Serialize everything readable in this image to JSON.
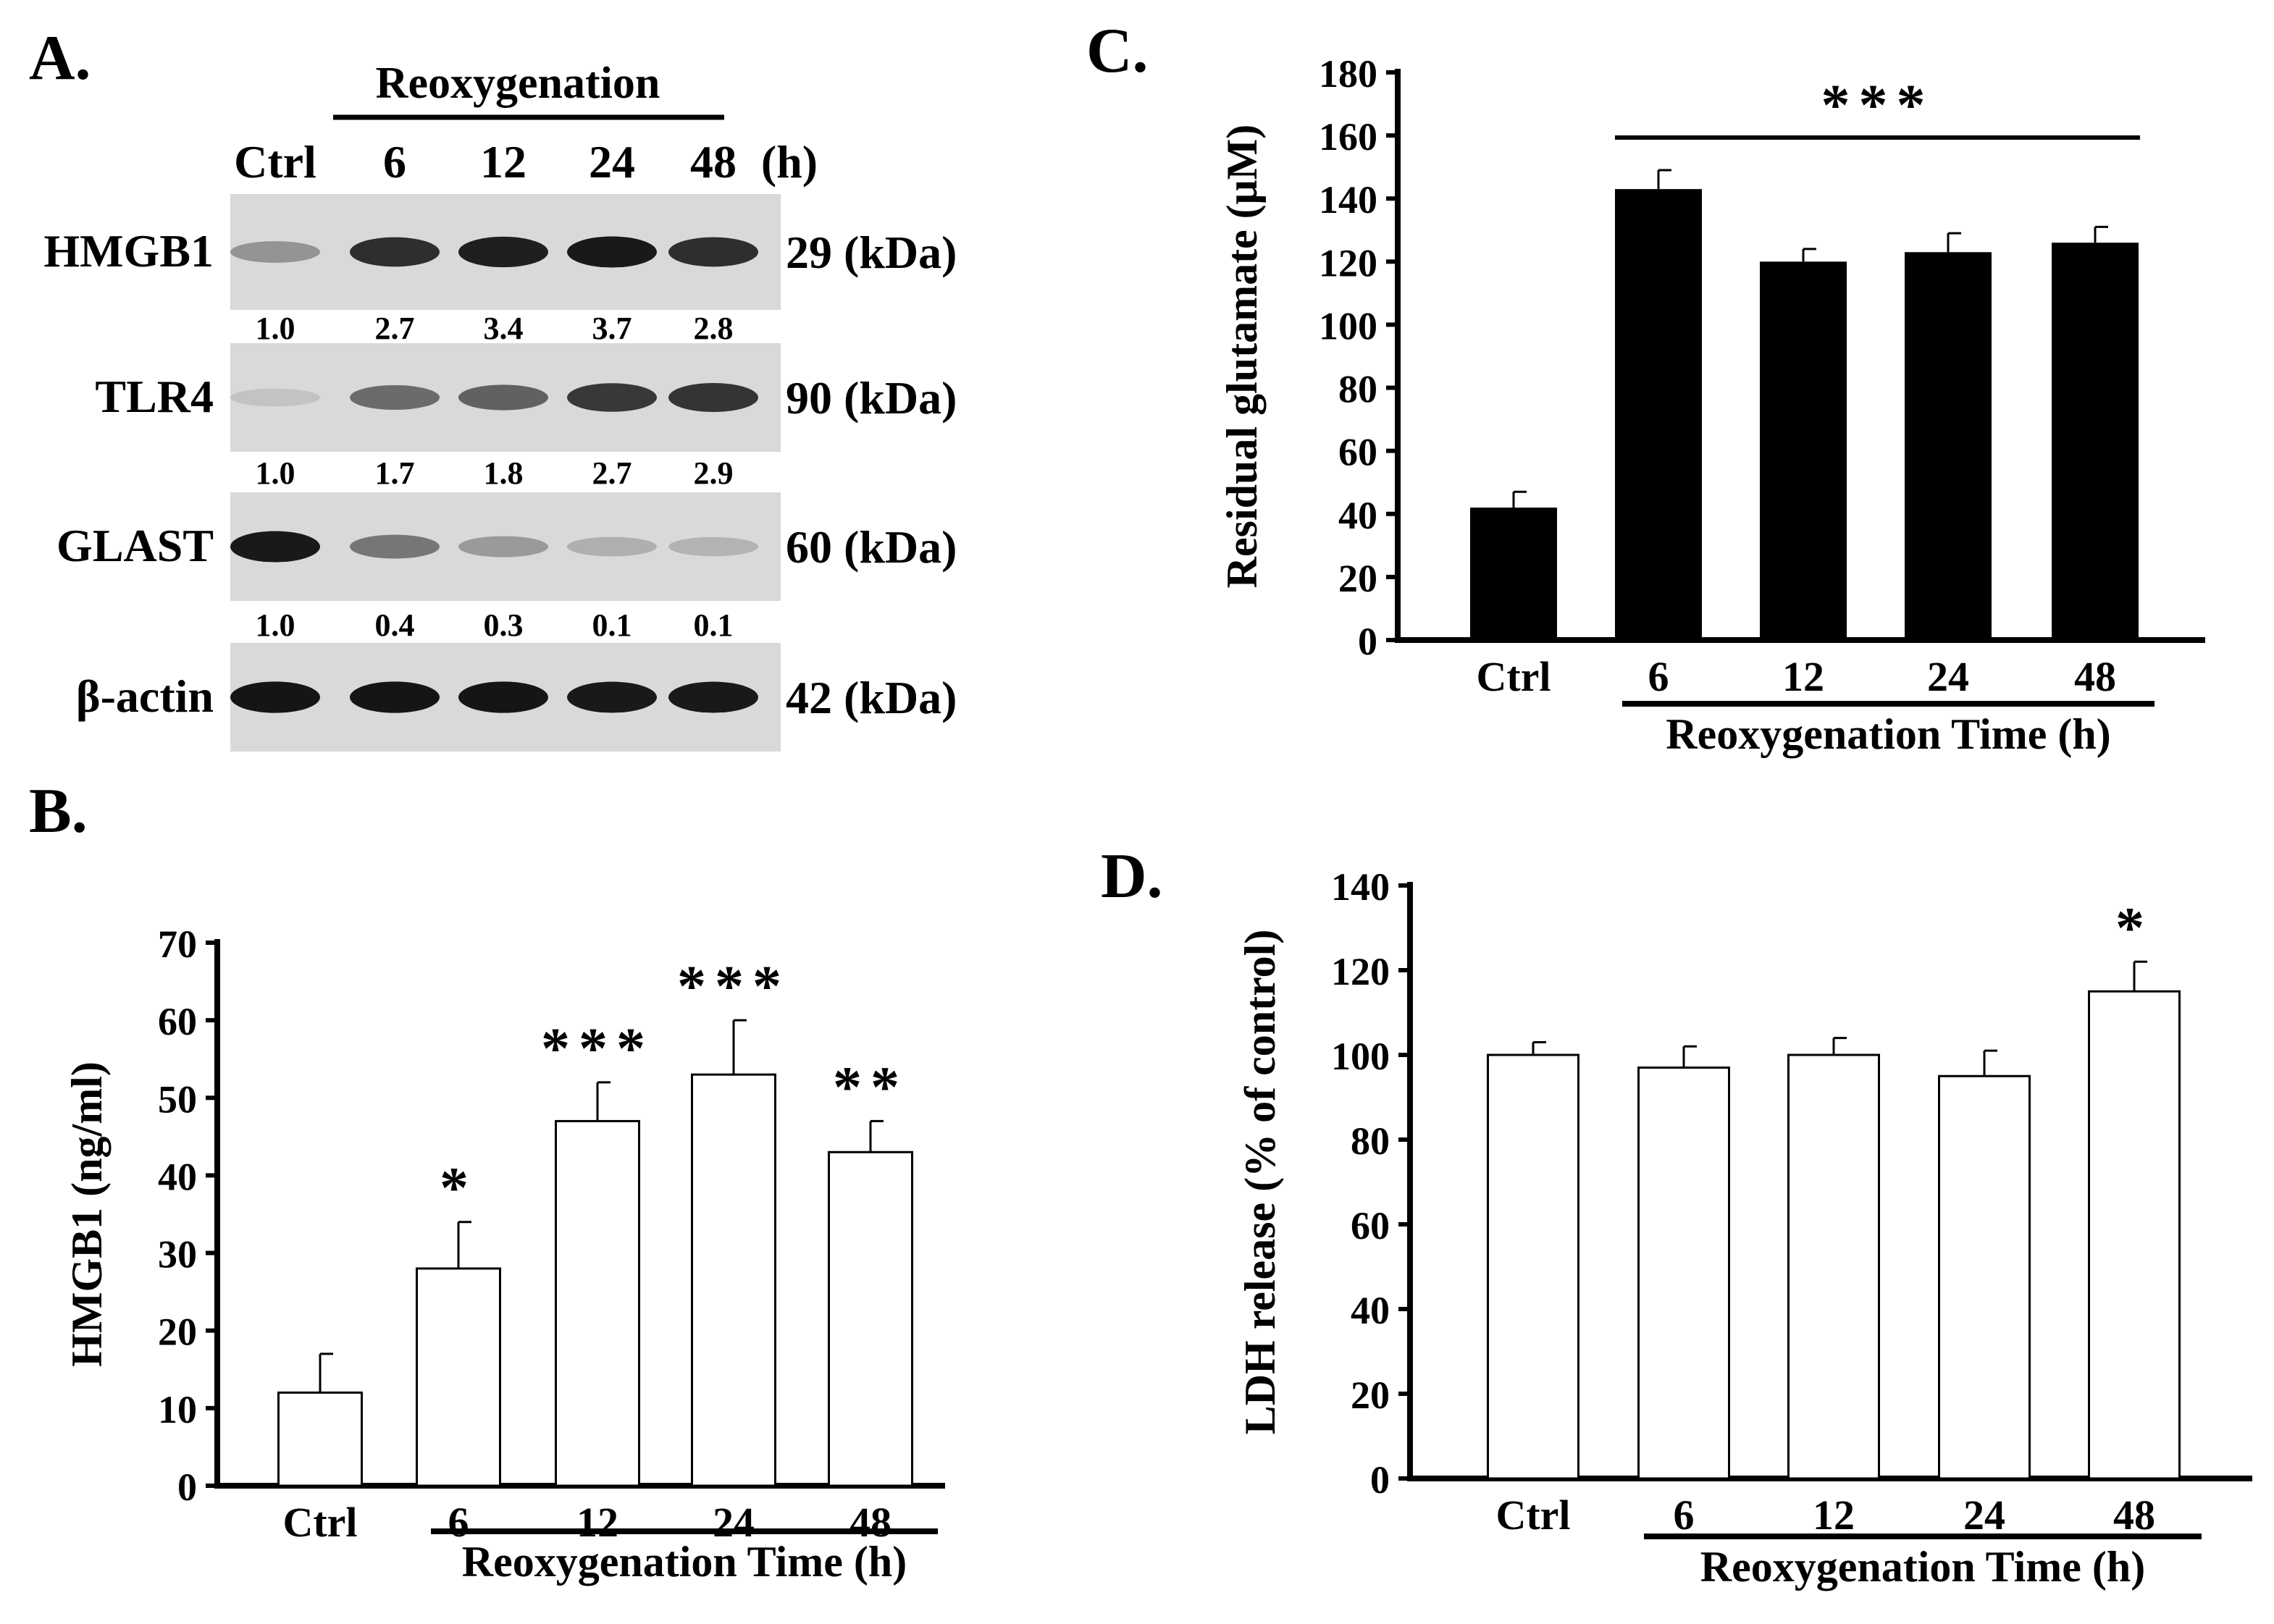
{
  "panels": {
    "a": "A.",
    "b": "B.",
    "c": "C.",
    "d": "D."
  },
  "blot": {
    "header": "Reoxygenation",
    "lanes": [
      "Ctrl",
      "6",
      "12",
      "24",
      "48"
    ],
    "time_unit": "(h)",
    "rows": [
      {
        "protein": "HMGB1",
        "kda": "29 (kDa)",
        "quant": [
          "1.0",
          "2.7",
          "3.4",
          "3.7",
          "2.8"
        ],
        "intensity": [
          0.35,
          0.85,
          0.92,
          0.95,
          0.85
        ]
      },
      {
        "protein": "TLR4",
        "kda": "90 (kDa)",
        "quant": [
          "1.0",
          "1.7",
          "1.8",
          "2.7",
          "2.9"
        ],
        "intensity": [
          0.12,
          0.55,
          0.6,
          0.8,
          0.82
        ]
      },
      {
        "protein": "GLAST",
        "kda": "60 (kDa)",
        "quant": [
          "1.0",
          "0.4",
          "0.3",
          "0.1",
          "0.1"
        ],
        "intensity": [
          0.95,
          0.5,
          0.32,
          0.22,
          0.2
        ]
      },
      {
        "protein": "β-actin",
        "kda": "42 (kDa)",
        "quant": [],
        "intensity": [
          0.97,
          0.97,
          0.97,
          0.95,
          0.95
        ]
      }
    ]
  },
  "chart_data": [
    {
      "id": "B",
      "type": "bar",
      "categories": [
        "Ctrl",
        "6",
        "12",
        "24",
        "48"
      ],
      "values": [
        12,
        28,
        47,
        53,
        43
      ],
      "errors": [
        5,
        6,
        5,
        7,
        4
      ],
      "significance": [
        "",
        "*",
        "***",
        "***",
        "**"
      ],
      "ylabel": "HMGB1  (ng/ml)",
      "xgroup_label": "Reoxygenation Time (h)",
      "ylim": [
        0,
        70
      ],
      "yticks": [
        0,
        10,
        20,
        30,
        40,
        50,
        60,
        70
      ],
      "bar_fill": "#ffffff",
      "grid": false
    },
    {
      "id": "C",
      "type": "bar",
      "categories": [
        "Ctrl",
        "6",
        "12",
        "24",
        "48"
      ],
      "values": [
        42,
        143,
        120,
        123,
        126
      ],
      "errors": [
        5,
        6,
        4,
        6,
        5
      ],
      "group_significance": "***",
      "ylabel": "Residual glutamate (μM)",
      "xgroup_label": "Reoxygenation Time (h)",
      "ylim": [
        0,
        180
      ],
      "yticks": [
        0,
        20,
        40,
        60,
        80,
        100,
        120,
        140,
        160,
        180
      ],
      "bar_fill": "#000000",
      "grid": false
    },
    {
      "id": "D",
      "type": "bar",
      "categories": [
        "Ctrl",
        "6",
        "12",
        "24",
        "48"
      ],
      "values": [
        100,
        97,
        100,
        95,
        115
      ],
      "errors": [
        3,
        5,
        4,
        6,
        7
      ],
      "significance": [
        "",
        "",
        "",
        "",
        "*"
      ],
      "ylabel": "LDH release (% of control)",
      "xgroup_label": "Reoxygenation Time (h)",
      "ylim": [
        0,
        140
      ],
      "yticks": [
        0,
        20,
        40,
        60,
        80,
        100,
        120,
        140
      ],
      "bar_fill": "#ffffff",
      "grid": false
    }
  ]
}
